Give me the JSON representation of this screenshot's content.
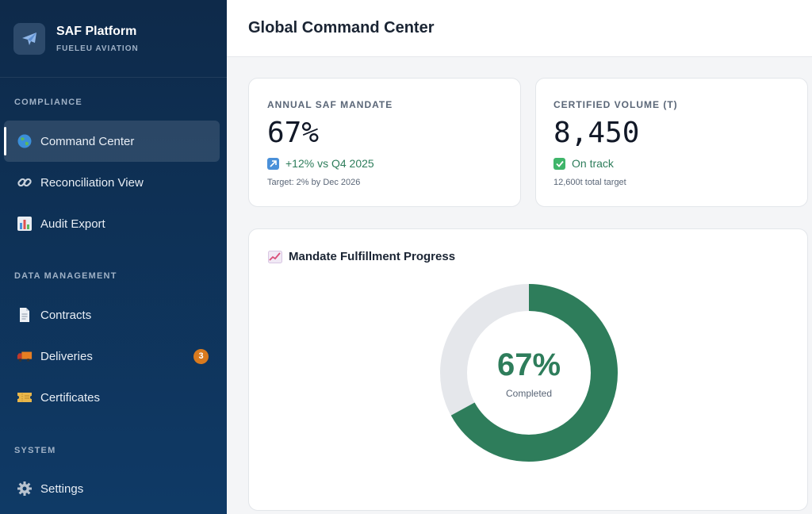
{
  "brand": {
    "name": "SAF Platform",
    "subtitle": "FUELEU AVIATION",
    "logo_icon": "airplane-icon"
  },
  "sidebar": {
    "sections": [
      {
        "label": "COMPLIANCE"
      },
      {
        "label": "DATA MANAGEMENT"
      },
      {
        "label": "SYSTEM"
      }
    ],
    "items": [
      {
        "label": "Command Center",
        "icon": "globe-icon",
        "active": true
      },
      {
        "label": "Reconciliation View",
        "icon": "link-icon"
      },
      {
        "label": "Audit Export",
        "icon": "bar-chart-icon"
      },
      {
        "label": "Contracts",
        "icon": "document-icon"
      },
      {
        "label": "Deliveries",
        "icon": "truck-icon",
        "badge": "3"
      },
      {
        "label": "Certificates",
        "icon": "ticket-icon"
      },
      {
        "label": "Settings",
        "icon": "gear-icon"
      }
    ]
  },
  "header": {
    "title": "Global Command Center"
  },
  "kpis": [
    {
      "label": "ANNUAL SAF MANDATE",
      "value": "67%",
      "trend": "+12% vs Q4 2025",
      "trend_icon": "arrow-up-right-icon",
      "sub": "Target: 2% by Dec 2026"
    },
    {
      "label": "CERTIFIED VOLUME (T)",
      "value": "8,450",
      "trend": "On track",
      "trend_icon": "checkmark-icon",
      "sub": "12,600t total target"
    }
  ],
  "progress": {
    "title": "Mandate Fulfillment Progress",
    "title_icon": "line-chart-icon",
    "value_text": "67%",
    "caption": "Completed",
    "fraction": 0.67,
    "fill_color": "#2e7d5b",
    "track_color": "#e5e7eb"
  }
}
